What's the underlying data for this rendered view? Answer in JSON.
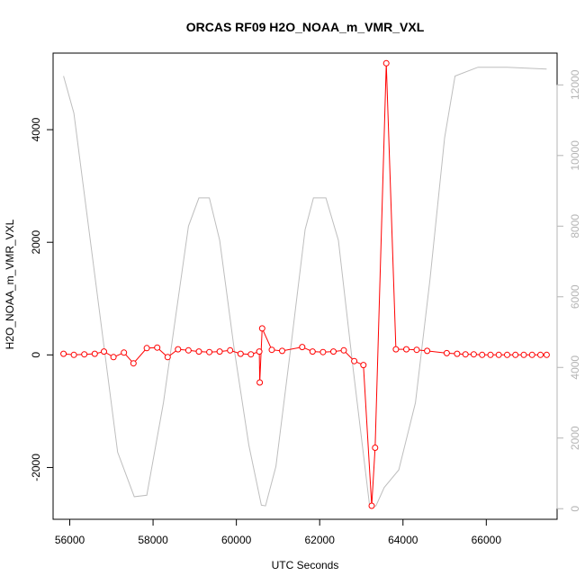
{
  "chart_data": {
    "type": "line",
    "title": "ORCAS RF09 H2O_NOAA_m_VMR_VXL",
    "xlabel": "UTC Seconds",
    "ylabel": "H2O_NOAA_m_VMR_VXL",
    "ylabel_right": "",
    "xlim": [
      55600,
      67700
    ],
    "ylim": [
      -2920,
      5360
    ],
    "y2lim": [
      -300,
      12900
    ],
    "x_ticks": [
      56000,
      58000,
      60000,
      62000,
      64000,
      66000
    ],
    "y_ticks": [
      -2000,
      0,
      2000,
      4000
    ],
    "y2_ticks": [
      0,
      2000,
      4000,
      6000,
      8000,
      10000,
      12000
    ],
    "grid": false,
    "colors": {
      "primary": "#ff0000",
      "secondary": "#bebebe",
      "secondary_axis": "#b4b4b4",
      "axis": "#000000"
    },
    "series": [
      {
        "axis": "left",
        "style": "line+markers",
        "x": [
          55850,
          56100,
          56350,
          56600,
          56820,
          57050,
          57300,
          57530,
          57850,
          58100,
          58350,
          58600,
          58850,
          59100,
          59350,
          59600,
          59850,
          60100,
          60350,
          60550,
          60560,
          60620,
          60850,
          61100,
          61580,
          61830,
          62080,
          62330,
          62580,
          62830,
          63050,
          63250,
          63330,
          63600,
          63830,
          64080,
          64330,
          64580,
          65050,
          65300,
          65500,
          65700,
          65900,
          66100,
          66300,
          66500,
          66700,
          66900,
          67100,
          67300,
          67450
        ],
        "y": [
          20,
          0,
          10,
          20,
          60,
          -40,
          40,
          -150,
          120,
          130,
          -40,
          100,
          80,
          60,
          50,
          60,
          80,
          20,
          10,
          60,
          -490,
          470,
          90,
          70,
          140,
          60,
          50,
          60,
          80,
          -110,
          -180,
          -2680,
          -1650,
          5180,
          100,
          100,
          90,
          70,
          30,
          20,
          10,
          10,
          0,
          0,
          0,
          0,
          0,
          0,
          0,
          0,
          0
        ]
      },
      {
        "axis": "right",
        "style": "line",
        "x": [
          55850,
          56100,
          56450,
          56800,
          57150,
          57550,
          57850,
          58250,
          58850,
          59100,
          59350,
          59600,
          59950,
          60300,
          60600,
          60700,
          60950,
          61300,
          61650,
          61850,
          62150,
          62450,
          62800,
          63200,
          63350,
          63550,
          63900,
          64300,
          64650,
          65000,
          65250,
          65800,
          66500,
          67450
        ],
        "y": [
          12250,
          11200,
          8000,
          4800,
          1600,
          340,
          380,
          3000,
          8000,
          8800,
          8800,
          7600,
          4500,
          1800,
          100,
          80,
          1200,
          4500,
          7900,
          8800,
          8800,
          7600,
          4000,
          80,
          80,
          600,
          1100,
          3000,
          6500,
          10500,
          12250,
          12500,
          12500,
          12450
        ]
      }
    ]
  }
}
